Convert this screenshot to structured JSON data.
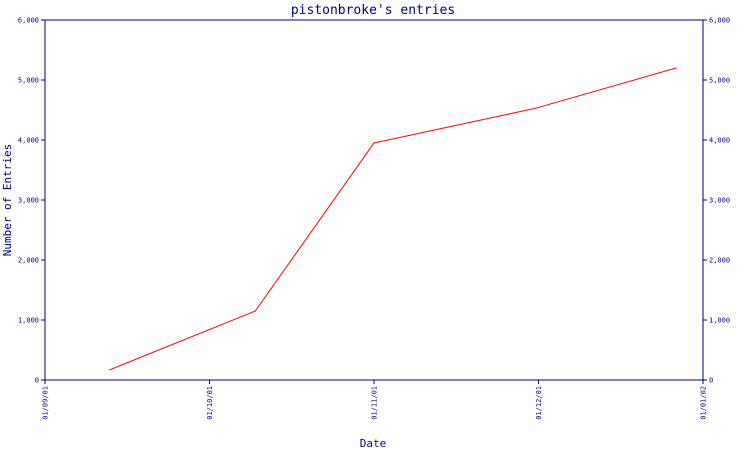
{
  "chart_data": {
    "type": "line",
    "title": "pistonbroke's entries",
    "xlabel": "Date",
    "ylabel": "Number of Entries",
    "x_ticks": [
      "01/09/01",
      "01/10/01",
      "01/11/01",
      "01/12/01",
      "01/01/02"
    ],
    "y_ticks": [
      "0",
      "1,000",
      "2,000",
      "3,000",
      "4,000",
      "5,000",
      "6,000"
    ],
    "ylim": [
      0,
      6000
    ],
    "xlim": [
      "2001-09-01",
      "2002-01-01"
    ],
    "y_axis_right": true,
    "grid": false,
    "series": [
      {
        "x": [
          "2001-09-13",
          "2001-10-10",
          "2001-11-01",
          "2001-12-01",
          "2001-12-27"
        ],
        "values": [
          170,
          1150,
          3950,
          4530,
          5200
        ]
      }
    ],
    "colors": {
      "axis": "#000080",
      "line": "#ff0000",
      "background": "#ffffff"
    }
  }
}
